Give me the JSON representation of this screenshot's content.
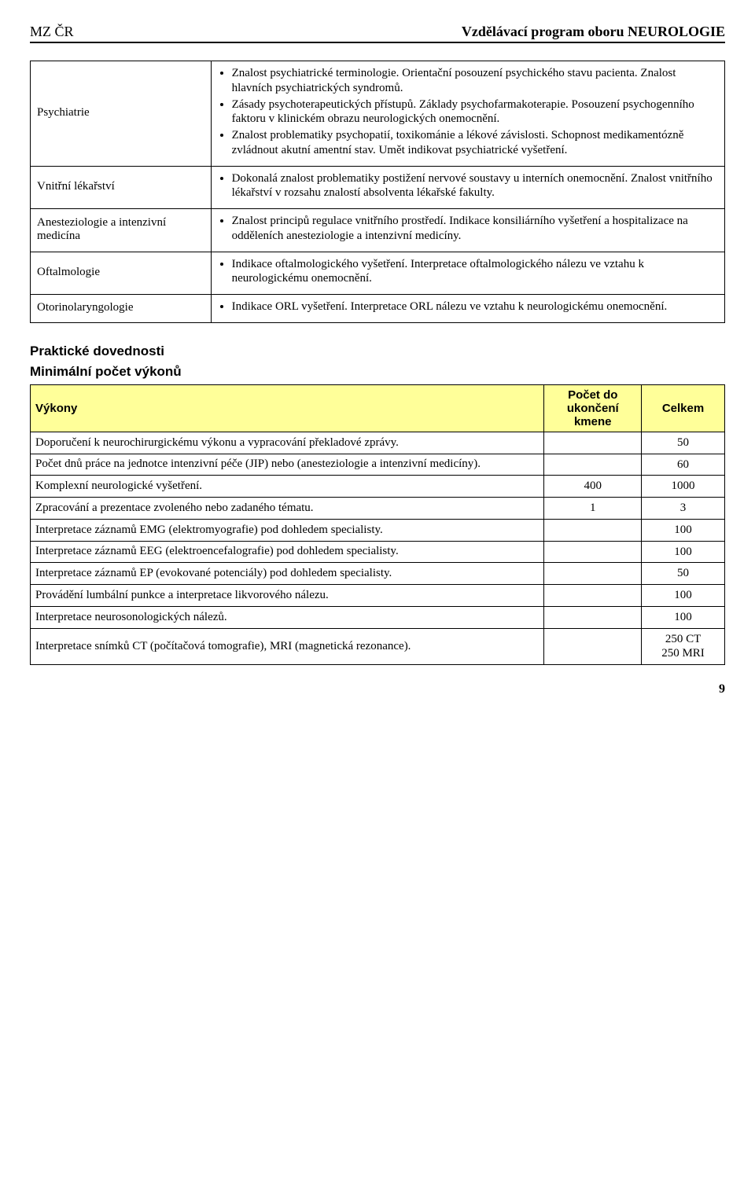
{
  "header": {
    "left": "MZ ČR",
    "right": "Vzdělávací program oboru NEUROLOGIE"
  },
  "specialties": [
    {
      "name": "Psychiatrie",
      "bullets": [
        "Znalost psychiatrické terminologie. Orientační posouzení psychického stavu pacienta. Znalost hlavních psychiatrických syndromů.",
        "Zásady psychoterapeutických přístupů. Základy psychofarmakoterapie. Posouzení psychogenního faktoru v klinickém obrazu neurologických onemocnění.",
        "Znalost problematiky psychopatií, toxikománie a lékové závislosti. Schopnost medikamentózně zvládnout akutní amentní stav. Umět indikovat psychiatrické vyšetření."
      ]
    },
    {
      "name": "Vnitřní lékařství",
      "bullets": [
        "Dokonalá znalost problematiky postižení nervové soustavy u interních onemocnění. Znalost vnitřního lékařství v rozsahu znalostí absolventa lékařské fakulty."
      ]
    },
    {
      "name": "Anesteziologie a intenzivní medicína",
      "bullets": [
        "Znalost principů regulace vnitřního prostředí. Indikace konsiliárního vyšetření a hospitalizace na odděleních anesteziologie a intenzivní medicíny."
      ]
    },
    {
      "name": "Oftalmologie",
      "bullets": [
        "Indikace oftalmologického vyšetření. Interpretace oftalmologického nálezu ve vztahu k neurologickému onemocnění."
      ]
    },
    {
      "name": "Otorinolaryngologie",
      "bullets": [
        "Indikace ORL vyšetření. Interpretace ORL nálezu ve vztahu k neurologickému onemocnění."
      ]
    }
  ],
  "sections": {
    "practical": "Praktické dovednosti",
    "minimal": "Minimální počet výkonů"
  },
  "counts_table": {
    "headers": {
      "vykony": "Výkony",
      "pocet_do": "Počet do ukončení kmene",
      "celkem": "Celkem"
    },
    "header_bg": "#ffff99",
    "rows": [
      {
        "desc": "Doporučení k neurochirurgickému výkonu a vypracování překladové zprávy.",
        "do_kmene": "",
        "celkem": "50"
      },
      {
        "desc": "Počet dnů práce na jednotce intenzivní péče (JIP) nebo (anesteziologie a intenzivní medicíny).",
        "do_kmene": "",
        "celkem": "60"
      },
      {
        "desc": "Komplexní neurologické vyšetření.",
        "do_kmene": "400",
        "celkem": "1000"
      },
      {
        "desc": "Zpracování a prezentace zvoleného nebo zadaného tématu.",
        "do_kmene": "1",
        "celkem": "3"
      },
      {
        "desc": "Interpretace záznamů EMG (elektromyografie) pod dohledem specialisty.",
        "do_kmene": "",
        "celkem": "100"
      },
      {
        "desc": "Interpretace záznamů EEG (elektroencefalografie) pod dohledem specialisty.",
        "do_kmene": "",
        "celkem": "100"
      },
      {
        "desc": "Interpretace záznamů EP (evokované potenciály) pod dohledem specialisty.",
        "do_kmene": "",
        "celkem": "50"
      },
      {
        "desc": "Provádění lumbální punkce a interpretace likvorového nálezu.",
        "do_kmene": "",
        "celkem": "100"
      },
      {
        "desc": "Interpretace neurosonologických nálezů.",
        "do_kmene": "",
        "celkem": "100"
      },
      {
        "desc": "Interpretace snímků CT (počítačová tomografie), MRI (magnetická rezonance).",
        "do_kmene": "",
        "celkem": "250 CT\n250 MRI"
      }
    ]
  },
  "page_number": "9"
}
